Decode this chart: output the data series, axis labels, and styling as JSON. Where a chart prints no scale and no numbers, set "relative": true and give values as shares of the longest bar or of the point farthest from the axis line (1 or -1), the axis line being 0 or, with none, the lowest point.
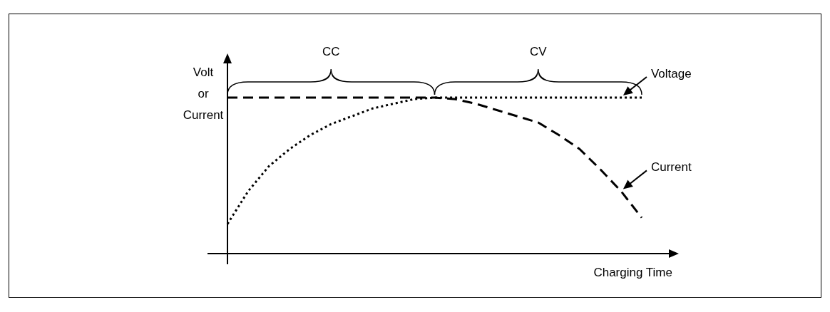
{
  "chart_data": {
    "type": "line",
    "relative": true,
    "xlabel": "Charging Time",
    "ylabel": "Volt or Current",
    "categories": [
      null,
      null,
      null,
      null,
      null,
      null,
      null,
      null,
      null,
      null,
      null,
      null,
      null,
      null,
      null,
      null,
      null,
      null,
      null,
      null,
      null
    ],
    "series": [
      {
        "name": "Voltage",
        "color": "#000000",
        "line_style": "dotted",
        "values": [
          0.19,
          0.4,
          0.56,
          0.67,
          0.76,
          0.83,
          0.88,
          0.93,
          0.96,
          0.99,
          1,
          1,
          1,
          1,
          1,
          1,
          1,
          1,
          1,
          1,
          1
        ]
      },
      {
        "name": "Current",
        "color": "#000000",
        "line_style": "dashed",
        "values": [
          1,
          1,
          1,
          1,
          1,
          1,
          1,
          1,
          1,
          1,
          1,
          0.99,
          0.96,
          0.92,
          0.88,
          0.84,
          0.76,
          0.67,
          0.54,
          0.4,
          0.23
        ]
      }
    ],
    "annotations": [
      "CC",
      "CV"
    ],
    "legend": false,
    "grid": false,
    "marker": "none"
  }
}
